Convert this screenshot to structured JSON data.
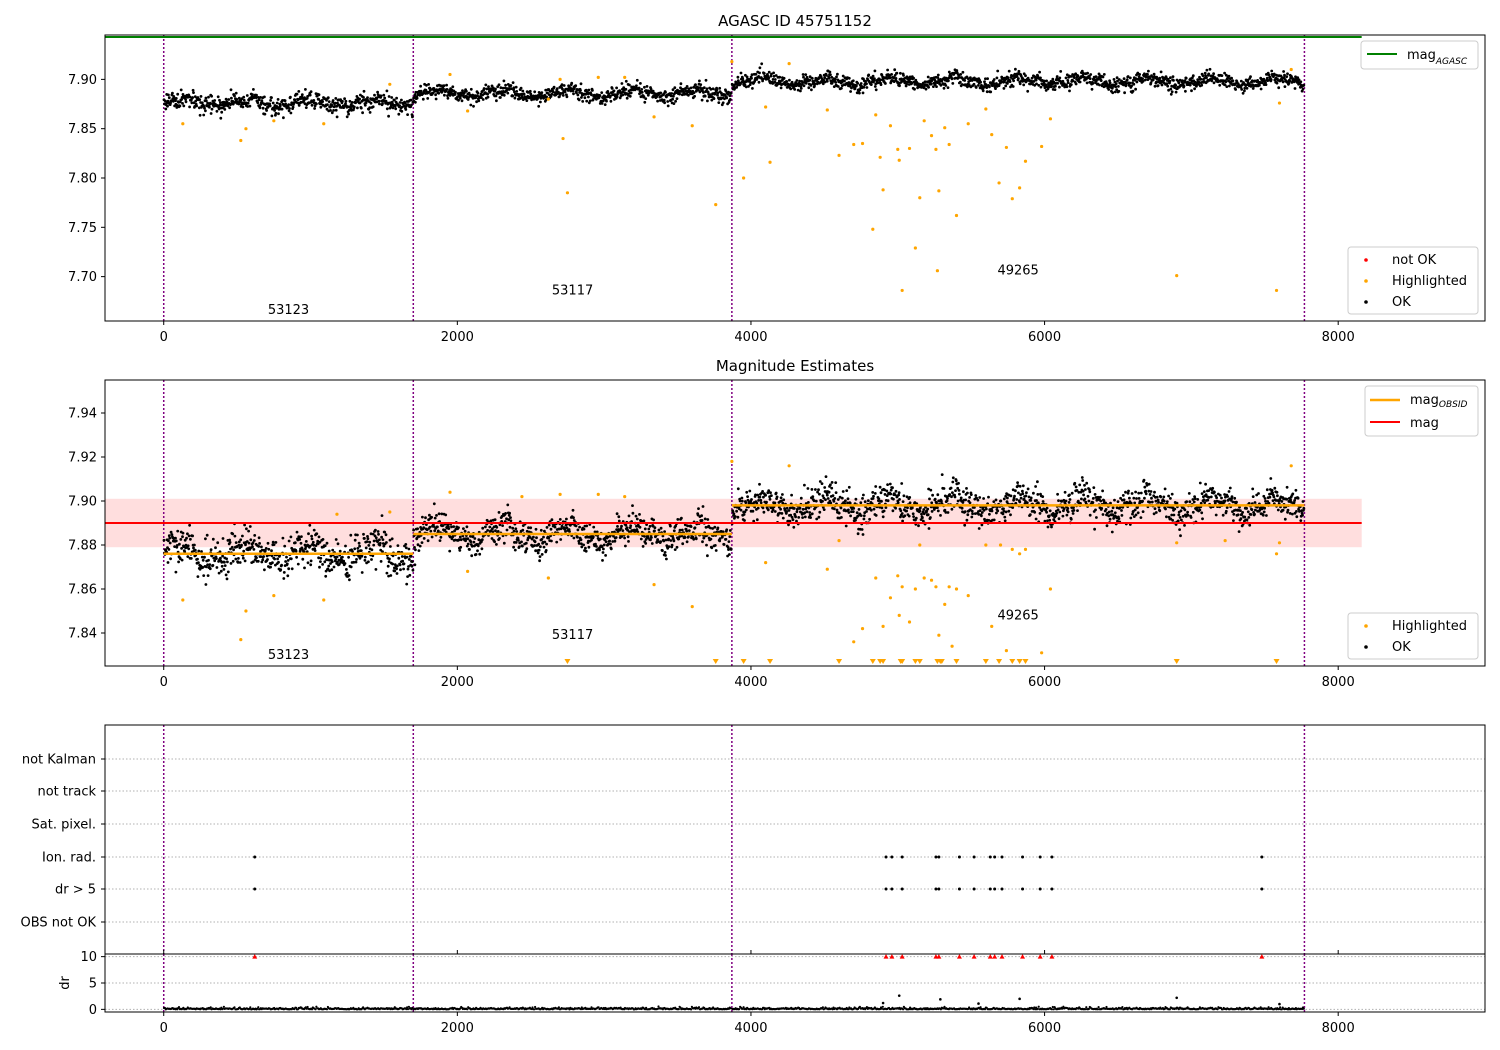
{
  "figure": {
    "title_top": "AGASC ID 45751152",
    "title_mid": "Magnitude Estimates"
  },
  "colors": {
    "ok": "#000000",
    "highlighted": "#ffa500",
    "not_ok": "#ff0000",
    "mag_agasc": "#008000",
    "mag_obsid": "#ffa500",
    "mag": "#ff0000",
    "band": "#ffdada",
    "obs_divider": "#800080"
  },
  "obs_boundaries": [
    0,
    1700,
    3870,
    7770
  ],
  "chart_data": [
    {
      "type": "scatter",
      "title": "AGASC ID 45751152",
      "xlim": [
        -400,
        9000
      ],
      "ylim": [
        7.655,
        7.945
      ],
      "xticks": [
        0,
        2000,
        4000,
        6000,
        8000
      ],
      "yticks": [
        7.7,
        7.75,
        7.8,
        7.85,
        7.9
      ],
      "ytick_labels": [
        "7.70",
        "7.75",
        "7.80",
        "7.85",
        "7.90"
      ],
      "mag_agasc": 7.943,
      "mag_agasc_xrange": [
        -400,
        8160
      ],
      "observations": [
        {
          "obsid": "53123",
          "x_start": 0,
          "x_end": 1700,
          "mean": 7.876,
          "std": 0.006,
          "label_y": 7.666
        },
        {
          "obsid": "53117",
          "x_start": 1700,
          "x_end": 3870,
          "mean": 7.886,
          "std": 0.005,
          "label_y": 7.686
        },
        {
          "obsid": "49265",
          "x_start": 3870,
          "x_end": 7770,
          "mean": 7.898,
          "std": 0.005,
          "label_y": 7.706
        }
      ],
      "highlighted_points": [
        [
          130,
          7.855
        ],
        [
          525,
          7.838
        ],
        [
          560,
          7.85
        ],
        [
          750,
          7.858
        ],
        [
          1090,
          7.855
        ],
        [
          1540,
          7.895
        ],
        [
          1950,
          7.905
        ],
        [
          2070,
          7.868
        ],
        [
          2620,
          7.88
        ],
        [
          2700,
          7.9
        ],
        [
          2720,
          7.84
        ],
        [
          2750,
          7.785
        ],
        [
          2960,
          7.902
        ],
        [
          3140,
          7.902
        ],
        [
          3340,
          7.862
        ],
        [
          3600,
          7.853
        ],
        [
          3760,
          7.773
        ],
        [
          3870,
          7.918
        ],
        [
          3950,
          7.8
        ],
        [
          4100,
          7.872
        ],
        [
          4130,
          7.816
        ],
        [
          4260,
          7.916
        ],
        [
          4520,
          7.869
        ],
        [
          4600,
          7.823
        ],
        [
          4700,
          7.834
        ],
        [
          4760,
          7.835
        ],
        [
          4830,
          7.748
        ],
        [
          4850,
          7.864
        ],
        [
          4880,
          7.821
        ],
        [
          4900,
          7.788
        ],
        [
          4950,
          7.853
        ],
        [
          5000,
          7.829
        ],
        [
          5010,
          7.818
        ],
        [
          5030,
          7.686
        ],
        [
          5080,
          7.83
        ],
        [
          5120,
          7.729
        ],
        [
          5150,
          7.78
        ],
        [
          5180,
          7.858
        ],
        [
          5230,
          7.843
        ],
        [
          5260,
          7.829
        ],
        [
          5270,
          7.706
        ],
        [
          5280,
          7.787
        ],
        [
          5320,
          7.851
        ],
        [
          5350,
          7.834
        ],
        [
          5400,
          7.762
        ],
        [
          5480,
          7.855
        ],
        [
          5600,
          7.87
        ],
        [
          5640,
          7.844
        ],
        [
          5690,
          7.795
        ],
        [
          5740,
          7.831
        ],
        [
          5780,
          7.779
        ],
        [
          5830,
          7.79
        ],
        [
          5870,
          7.817
        ],
        [
          5980,
          7.832
        ],
        [
          6040,
          7.86
        ],
        [
          6900,
          7.701
        ],
        [
          7580,
          7.686
        ],
        [
          7600,
          7.876
        ],
        [
          7680,
          7.91
        ]
      ],
      "legend": [
        "not OK",
        "Highlighted",
        "OK"
      ],
      "legend_line": "mag",
      "legend_line_subscript": "AGASC"
    },
    {
      "type": "scatter",
      "title": "Magnitude Estimates",
      "xlim": [
        -400,
        9000
      ],
      "ylim": [
        7.825,
        7.955
      ],
      "xticks": [
        0,
        2000,
        4000,
        6000,
        8000
      ],
      "yticks": [
        7.84,
        7.86,
        7.88,
        7.9,
        7.92,
        7.94
      ],
      "ytick_labels": [
        "7.84",
        "7.86",
        "7.88",
        "7.90",
        "7.92",
        "7.94"
      ],
      "mag": 7.89,
      "mag_band": [
        7.879,
        7.901
      ],
      "mag_xrange": [
        -400,
        8160
      ],
      "observations": [
        {
          "obsid": "53123",
          "x_start": 0,
          "x_end": 1700,
          "mean": 7.876,
          "std": 0.006,
          "label_y": 7.83
        },
        {
          "obsid": "53117",
          "x_start": 1700,
          "x_end": 3870,
          "mean": 7.885,
          "std": 0.005,
          "label_y": 7.839
        },
        {
          "obsid": "49265",
          "x_start": 3870,
          "x_end": 7770,
          "mean": 7.898,
          "std": 0.005,
          "label_y": 7.848
        }
      ],
      "highlighted_points": [
        [
          130,
          7.855
        ],
        [
          525,
          7.837
        ],
        [
          560,
          7.85
        ],
        [
          750,
          7.857
        ],
        [
          1090,
          7.855
        ],
        [
          1180,
          7.894
        ],
        [
          1540,
          7.895
        ],
        [
          1950,
          7.904
        ],
        [
          2070,
          7.868
        ],
        [
          2440,
          7.902
        ],
        [
          2620,
          7.865
        ],
        [
          2700,
          7.903
        ],
        [
          2960,
          7.903
        ],
        [
          3140,
          7.902
        ],
        [
          3340,
          7.862
        ],
        [
          3600,
          7.852
        ],
        [
          3870,
          7.918
        ],
        [
          4100,
          7.872
        ],
        [
          4260,
          7.916
        ],
        [
          4520,
          7.869
        ],
        [
          4600,
          7.882
        ],
        [
          4700,
          7.836
        ],
        [
          4760,
          7.842
        ],
        [
          4850,
          7.865
        ],
        [
          4900,
          7.843
        ],
        [
          4950,
          7.856
        ],
        [
          5000,
          7.866
        ],
        [
          5010,
          7.848
        ],
        [
          5030,
          7.861
        ],
        [
          5080,
          7.845
        ],
        [
          5120,
          7.86
        ],
        [
          5150,
          7.88
        ],
        [
          5180,
          7.865
        ],
        [
          5230,
          7.864
        ],
        [
          5260,
          7.861
        ],
        [
          5280,
          7.839
        ],
        [
          5320,
          7.853
        ],
        [
          5350,
          7.861
        ],
        [
          5370,
          7.834
        ],
        [
          5400,
          7.86
        ],
        [
          5480,
          7.857
        ],
        [
          5600,
          7.88
        ],
        [
          5640,
          7.843
        ],
        [
          5700,
          7.88
        ],
        [
          5740,
          7.832
        ],
        [
          5780,
          7.878
        ],
        [
          5830,
          7.876
        ],
        [
          5870,
          7.878
        ],
        [
          5980,
          7.831
        ],
        [
          6040,
          7.86
        ],
        [
          6900,
          7.881
        ],
        [
          7230,
          7.882
        ],
        [
          7580,
          7.876
        ],
        [
          7600,
          7.881
        ],
        [
          7680,
          7.916
        ]
      ],
      "below_limit_x": [
        2750,
        3760,
        3950,
        4130,
        4600,
        4830,
        4880,
        4900,
        5020,
        5030,
        5120,
        5150,
        5270,
        5290,
        5300,
        5400,
        5600,
        5690,
        5780,
        5830,
        5870,
        6900,
        7580
      ],
      "legend": [
        "Highlighted",
        "OK"
      ],
      "legend_lines": [
        {
          "name": "mag",
          "subscript": "OBSID"
        },
        {
          "name": "mag",
          "subscript": ""
        }
      ]
    },
    {
      "type": "scatter",
      "title": "",
      "xlim": [
        -400,
        9000
      ],
      "categories": [
        "not Kalman",
        "not track",
        "Sat. pixel.",
        "Ion. rad.",
        "dr > 5",
        "OBS not OK"
      ],
      "flag_x": [
        620,
        4920,
        4960,
        5030,
        5260,
        5280,
        5420,
        5520,
        5630,
        5660,
        5710,
        5850,
        5970,
        6050,
        7480
      ],
      "flags": {
        "not Kalman": [],
        "not track": [],
        "Sat. pixel.": [],
        "Ion. rad.": [
          620,
          4920,
          4960,
          5030,
          5260,
          5280,
          5420,
          5520,
          5630,
          5660,
          5710,
          5850,
          5970,
          6050,
          7480
        ],
        "dr > 5": [
          620,
          4920,
          4960,
          5030,
          5260,
          5280,
          5420,
          5520,
          5630,
          5660,
          5710,
          5850,
          5970,
          6050,
          7480
        ],
        "OBS not OK": []
      }
    },
    {
      "type": "scatter",
      "ylabel": "dr",
      "xlim": [
        -400,
        9000
      ],
      "ylim": [
        -0.5,
        10.5
      ],
      "xticks": [
        0,
        2000,
        4000,
        6000,
        8000
      ],
      "yticks": [
        0,
        5,
        10
      ],
      "ytick_labels": [
        "0",
        "5",
        "10"
      ],
      "clipped_value": 10,
      "clipped_x": [
        620,
        4920,
        4960,
        5030,
        5260,
        5280,
        5420,
        5520,
        5630,
        5660,
        5710,
        5850,
        5970,
        6050,
        7480
      ],
      "outliers": [
        [
          4900,
          1.2
        ],
        [
          5010,
          2.6
        ],
        [
          5290,
          1.9
        ],
        [
          5550,
          1.1
        ],
        [
          5830,
          2.0
        ],
        [
          6900,
          2.2
        ],
        [
          7600,
          1.0
        ]
      ]
    }
  ]
}
